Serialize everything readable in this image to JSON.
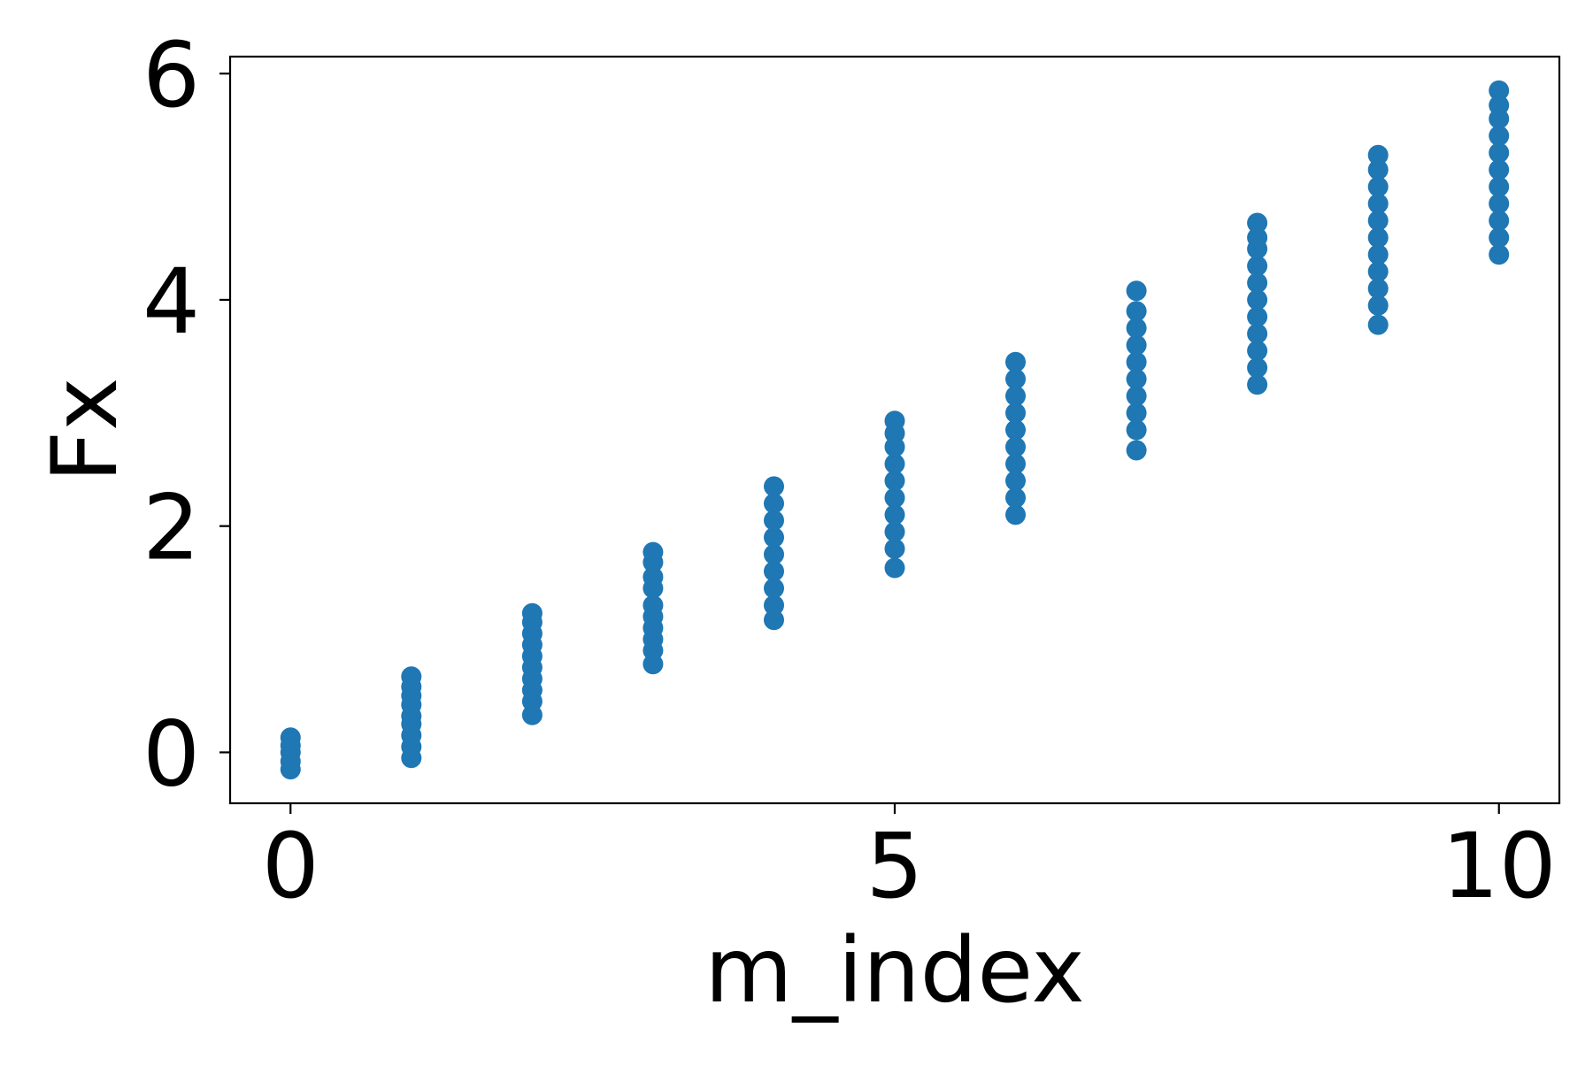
{
  "colors": {
    "series": "#1f77b4",
    "axes": "#000000",
    "background": "#ffffff"
  },
  "chart_data": {
    "type": "scatter",
    "title": "",
    "xlabel": "m_index",
    "ylabel": "Fx",
    "xlim": [
      -0.5,
      10.5
    ],
    "ylim": [
      -0.45,
      6.15
    ],
    "xticks": [
      0,
      5,
      10
    ],
    "xtick_labels": [
      "0",
      "5",
      "10"
    ],
    "yticks": [
      0,
      2,
      4,
      6
    ],
    "ytick_labels": [
      "0",
      "2",
      "4",
      "6"
    ],
    "grid": false,
    "legend": "none",
    "series": [
      {
        "points": [
          {
            "x": 0,
            "y": -0.15
          },
          {
            "x": 0,
            "y": -0.08
          },
          {
            "x": 0,
            "y": 0.0
          },
          {
            "x": 0,
            "y": 0.06
          },
          {
            "x": 0,
            "y": 0.13
          },
          {
            "x": 1,
            "y": -0.05
          },
          {
            "x": 1,
            "y": 0.05
          },
          {
            "x": 1,
            "y": 0.15
          },
          {
            "x": 1,
            "y": 0.25
          },
          {
            "x": 1,
            "y": 0.32
          },
          {
            "x": 1,
            "y": 0.42
          },
          {
            "x": 1,
            "y": 0.5
          },
          {
            "x": 1,
            "y": 0.58
          },
          {
            "x": 1,
            "y": 0.67
          },
          {
            "x": 2,
            "y": 0.33
          },
          {
            "x": 2,
            "y": 0.45
          },
          {
            "x": 2,
            "y": 0.55
          },
          {
            "x": 2,
            "y": 0.65
          },
          {
            "x": 2,
            "y": 0.75
          },
          {
            "x": 2,
            "y": 0.85
          },
          {
            "x": 2,
            "y": 0.95
          },
          {
            "x": 2,
            "y": 1.05
          },
          {
            "x": 2,
            "y": 1.15
          },
          {
            "x": 2,
            "y": 1.23
          },
          {
            "x": 3,
            "y": 0.78
          },
          {
            "x": 3,
            "y": 0.9
          },
          {
            "x": 3,
            "y": 1.0
          },
          {
            "x": 3,
            "y": 1.1
          },
          {
            "x": 3,
            "y": 1.2
          },
          {
            "x": 3,
            "y": 1.3
          },
          {
            "x": 3,
            "y": 1.45
          },
          {
            "x": 3,
            "y": 1.55
          },
          {
            "x": 3,
            "y": 1.68
          },
          {
            "x": 3,
            "y": 1.77
          },
          {
            "x": 4,
            "y": 1.17
          },
          {
            "x": 4,
            "y": 1.3
          },
          {
            "x": 4,
            "y": 1.45
          },
          {
            "x": 4,
            "y": 1.6
          },
          {
            "x": 4,
            "y": 1.75
          },
          {
            "x": 4,
            "y": 1.9
          },
          {
            "x": 4,
            "y": 2.05
          },
          {
            "x": 4,
            "y": 2.2
          },
          {
            "x": 4,
            "y": 2.35
          },
          {
            "x": 5,
            "y": 1.63
          },
          {
            "x": 5,
            "y": 1.8
          },
          {
            "x": 5,
            "y": 1.95
          },
          {
            "x": 5,
            "y": 2.1
          },
          {
            "x": 5,
            "y": 2.25
          },
          {
            "x": 5,
            "y": 2.4
          },
          {
            "x": 5,
            "y": 2.55
          },
          {
            "x": 5,
            "y": 2.7
          },
          {
            "x": 5,
            "y": 2.82
          },
          {
            "x": 5,
            "y": 2.93
          },
          {
            "x": 6,
            "y": 2.1
          },
          {
            "x": 6,
            "y": 2.25
          },
          {
            "x": 6,
            "y": 2.4
          },
          {
            "x": 6,
            "y": 2.55
          },
          {
            "x": 6,
            "y": 2.7
          },
          {
            "x": 6,
            "y": 2.85
          },
          {
            "x": 6,
            "y": 3.0
          },
          {
            "x": 6,
            "y": 3.15
          },
          {
            "x": 6,
            "y": 3.3
          },
          {
            "x": 6,
            "y": 3.45
          },
          {
            "x": 7,
            "y": 2.67
          },
          {
            "x": 7,
            "y": 2.85
          },
          {
            "x": 7,
            "y": 3.0
          },
          {
            "x": 7,
            "y": 3.15
          },
          {
            "x": 7,
            "y": 3.3
          },
          {
            "x": 7,
            "y": 3.45
          },
          {
            "x": 7,
            "y": 3.6
          },
          {
            "x": 7,
            "y": 3.75
          },
          {
            "x": 7,
            "y": 3.9
          },
          {
            "x": 7,
            "y": 4.08
          },
          {
            "x": 8,
            "y": 3.25
          },
          {
            "x": 8,
            "y": 3.4
          },
          {
            "x": 8,
            "y": 3.55
          },
          {
            "x": 8,
            "y": 3.7
          },
          {
            "x": 8,
            "y": 3.85
          },
          {
            "x": 8,
            "y": 4.0
          },
          {
            "x": 8,
            "y": 4.15
          },
          {
            "x": 8,
            "y": 4.3
          },
          {
            "x": 8,
            "y": 4.45
          },
          {
            "x": 8,
            "y": 4.55
          },
          {
            "x": 8,
            "y": 4.68
          },
          {
            "x": 9,
            "y": 3.78
          },
          {
            "x": 9,
            "y": 3.95
          },
          {
            "x": 9,
            "y": 4.1
          },
          {
            "x": 9,
            "y": 4.25
          },
          {
            "x": 9,
            "y": 4.4
          },
          {
            "x": 9,
            "y": 4.55
          },
          {
            "x": 9,
            "y": 4.7
          },
          {
            "x": 9,
            "y": 4.85
          },
          {
            "x": 9,
            "y": 5.0
          },
          {
            "x": 9,
            "y": 5.15
          },
          {
            "x": 9,
            "y": 5.28
          },
          {
            "x": 10,
            "y": 4.4
          },
          {
            "x": 10,
            "y": 4.55
          },
          {
            "x": 10,
            "y": 4.7
          },
          {
            "x": 10,
            "y": 4.85
          },
          {
            "x": 10,
            "y": 5.0
          },
          {
            "x": 10,
            "y": 5.15
          },
          {
            "x": 10,
            "y": 5.3
          },
          {
            "x": 10,
            "y": 5.45
          },
          {
            "x": 10,
            "y": 5.6
          },
          {
            "x": 10,
            "y": 5.72
          },
          {
            "x": 10,
            "y": 5.85
          }
        ]
      }
    ]
  }
}
